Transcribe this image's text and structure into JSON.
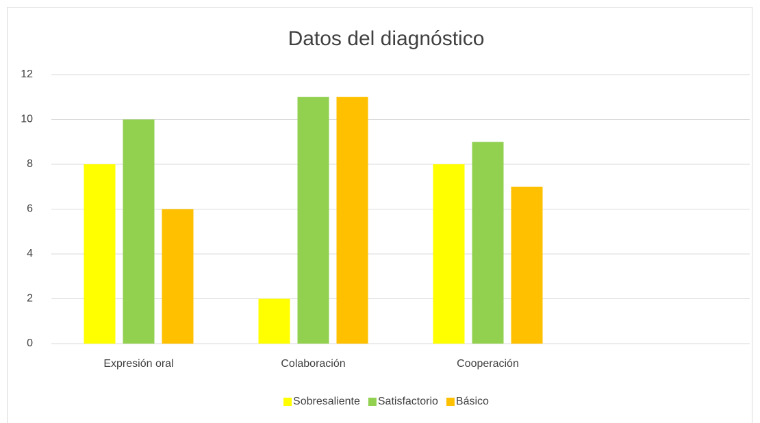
{
  "chart_data": {
    "type": "bar",
    "title": "Datos del diagnóstico",
    "categories": [
      "Expresión oral",
      "Colaboración",
      "Cooperación",
      null
    ],
    "series": [
      {
        "name": "Sobresaliente",
        "color": "#FFFF00",
        "values": [
          8,
          2,
          8,
          null
        ]
      },
      {
        "name": "Satisfactorio",
        "color": "#92D050",
        "values": [
          10,
          11,
          9,
          null
        ]
      },
      {
        "name": "Básico",
        "color": "#FFC000",
        "values": [
          6,
          11,
          7,
          null
        ]
      }
    ],
    "ylim": [
      0,
      12
    ],
    "yticks": [
      0,
      2,
      4,
      6,
      8,
      10,
      12
    ],
    "grid": true,
    "legend": "bottom"
  }
}
